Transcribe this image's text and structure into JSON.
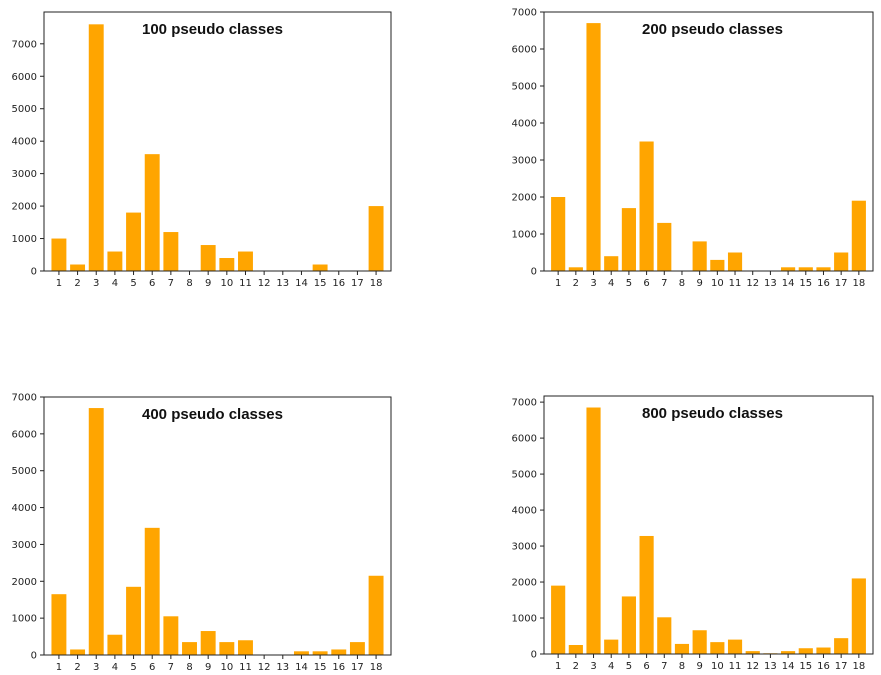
{
  "chart_data": [
    {
      "type": "bar",
      "title": "100 pseudo classes",
      "categories": [
        "1",
        "2",
        "3",
        "4",
        "5",
        "6",
        "7",
        "8",
        "9",
        "10",
        "11",
        "12",
        "13",
        "14",
        "15",
        "16",
        "17",
        "18"
      ],
      "values": [
        1000,
        200,
        7600,
        600,
        1800,
        3600,
        1200,
        0,
        800,
        400,
        600,
        0,
        0,
        0,
        200,
        0,
        0,
        2000
      ],
      "yticks": [
        0,
        1000,
        2000,
        3000,
        4000,
        5000,
        6000,
        7000
      ],
      "ylim": [
        0,
        7980
      ],
      "color": "#FFA500"
    },
    {
      "type": "bar",
      "title": "200 pseudo classes",
      "categories": [
        "1",
        "2",
        "3",
        "4",
        "5",
        "6",
        "7",
        "8",
        "9",
        "10",
        "11",
        "12",
        "13",
        "14",
        "15",
        "16",
        "17",
        "18"
      ],
      "values": [
        2000,
        100,
        6700,
        400,
        1700,
        3500,
        1300,
        0,
        800,
        300,
        500,
        0,
        0,
        100,
        100,
        100,
        500,
        1900
      ],
      "yticks": [
        0,
        1000,
        2000,
        3000,
        4000,
        5000,
        6000,
        7000
      ],
      "ylim": [
        0,
        7000
      ],
      "color": "#FFA500"
    },
    {
      "type": "bar",
      "title": "400 pseudo classes",
      "categories": [
        "1",
        "2",
        "3",
        "4",
        "5",
        "6",
        "7",
        "8",
        "9",
        "10",
        "11",
        "12",
        "13",
        "14",
        "15",
        "16",
        "17",
        "18"
      ],
      "values": [
        1650,
        150,
        6700,
        550,
        1850,
        3450,
        1050,
        350,
        650,
        350,
        400,
        0,
        0,
        100,
        100,
        150,
        350,
        2150
      ],
      "yticks": [
        0,
        1000,
        2000,
        3000,
        4000,
        5000,
        6000,
        7000
      ],
      "ylim": [
        0,
        7000
      ],
      "color": "#FFA500"
    },
    {
      "type": "bar",
      "title": "800 pseudo classes",
      "categories": [
        "1",
        "2",
        "3",
        "4",
        "5",
        "6",
        "7",
        "8",
        "9",
        "10",
        "11",
        "12",
        "13",
        "14",
        "15",
        "16",
        "17",
        "18"
      ],
      "values": [
        1900,
        250,
        6850,
        400,
        1600,
        3280,
        1020,
        280,
        660,
        330,
        400,
        80,
        20,
        80,
        160,
        180,
        440,
        2100
      ],
      "yticks": [
        0,
        1000,
        2000,
        3000,
        4000,
        5000,
        6000,
        7000
      ],
      "ylim": [
        0,
        7170
      ],
      "color": "#FFA500"
    }
  ]
}
